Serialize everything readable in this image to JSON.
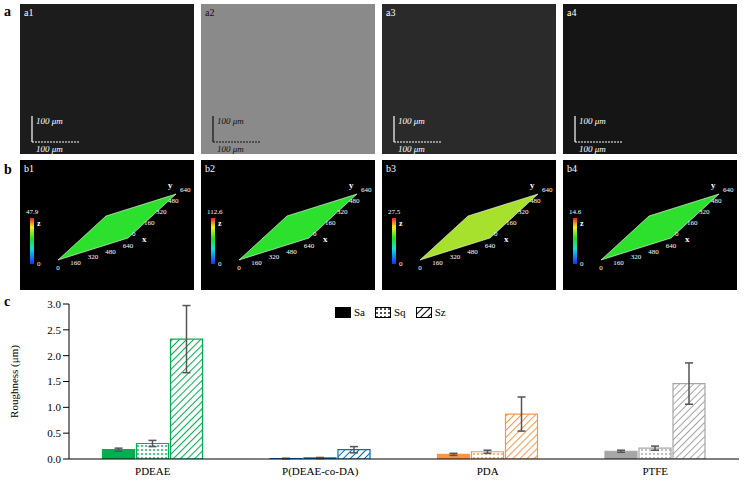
{
  "panels": [
    {
      "letter": "a",
      "items": [
        {
          "label": "a1",
          "scale_bars": [
            "100 μm",
            "100 μm"
          ]
        },
        {
          "label": "a2",
          "scale_bars": [
            "100 μm",
            "100 μm"
          ]
        },
        {
          "label": "a3",
          "scale_bars": [
            "100 μm",
            "100 μm"
          ]
        },
        {
          "label": "a4",
          "scale_bars": [
            "100 μm",
            "100 μm"
          ]
        }
      ]
    },
    {
      "letter": "b",
      "items": [
        {
          "label": "b1",
          "x_label": "x",
          "y_label": "y",
          "z_label": "z",
          "xlim": [
            0,
            640
          ],
          "xticks": [
            0,
            160,
            320,
            480,
            640
          ],
          "ylim": [
            0,
            640
          ],
          "yticks": [
            0,
            160,
            320,
            480,
            640
          ],
          "zlim": [
            0,
            47.9
          ]
        },
        {
          "label": "b2",
          "x_label": "x",
          "y_label": "y",
          "z_label": "z",
          "xlim": [
            0,
            640
          ],
          "xticks": [
            0,
            160,
            320,
            480,
            640
          ],
          "ylim": [
            0,
            640
          ],
          "yticks": [
            0,
            160,
            320,
            480,
            640
          ],
          "zlim": [
            0,
            112.6
          ]
        },
        {
          "label": "b3",
          "x_label": "x",
          "y_label": "y",
          "z_label": "z",
          "xlim": [
            0,
            640
          ],
          "xticks": [
            0,
            160,
            320,
            480,
            640
          ],
          "ylim": [
            0,
            640
          ],
          "yticks": [
            0,
            160,
            320,
            480,
            640
          ],
          "zlim": [
            0,
            27.5
          ]
        },
        {
          "label": "b4",
          "x_label": "x",
          "y_label": "y",
          "z_label": "z",
          "xlim": [
            0,
            640
          ],
          "xticks": [
            0,
            160,
            320,
            480,
            640
          ],
          "ylim": [
            0,
            640
          ],
          "yticks": [
            0,
            160,
            320,
            480,
            640
          ],
          "zlim": [
            0,
            14.6
          ]
        }
      ]
    }
  ],
  "chart_data": {
    "letter": "c",
    "type": "bar",
    "categories": [
      "PDEAE",
      "P(DEAE-co-DA)",
      "PDA",
      "PTFE"
    ],
    "colors": [
      "#00b050",
      "#0070c0",
      "#f79646",
      "#a6a6a6"
    ],
    "ylabel": "Roughness (μm)",
    "ylim": [
      0,
      3
    ],
    "yticks": [
      {
        "value": 0,
        "label": "0.0"
      },
      {
        "value": 0.5,
        "label": "0.5"
      },
      {
        "value": 1,
        "label": "1.0"
      },
      {
        "value": 1.5,
        "label": "1.5"
      },
      {
        "value": 2,
        "label": "2.0"
      },
      {
        "value": 2.5,
        "label": "2.5"
      },
      {
        "value": 3,
        "label": "3.0"
      }
    ],
    "grid": false,
    "legend": "top",
    "series": [
      {
        "name": "Sa",
        "color": "#000000",
        "marker": "solid",
        "values": [
          0.18,
          0.01,
          0.09,
          0.15
        ],
        "errors": [
          0.03,
          0.005,
          0.02,
          0.02
        ]
      },
      {
        "name": "Sq",
        "color": "#000000",
        "marker": "dots",
        "values": [
          0.3,
          0.02,
          0.14,
          0.21
        ],
        "errors": [
          0.06,
          0.01,
          0.03,
          0.04
        ]
      },
      {
        "name": "Sz",
        "color": "#000000",
        "marker": "hatch",
        "values": [
          2.32,
          0.18,
          0.87,
          1.46
        ],
        "errors": [
          0.65,
          0.06,
          0.33,
          0.4
        ]
      }
    ]
  }
}
